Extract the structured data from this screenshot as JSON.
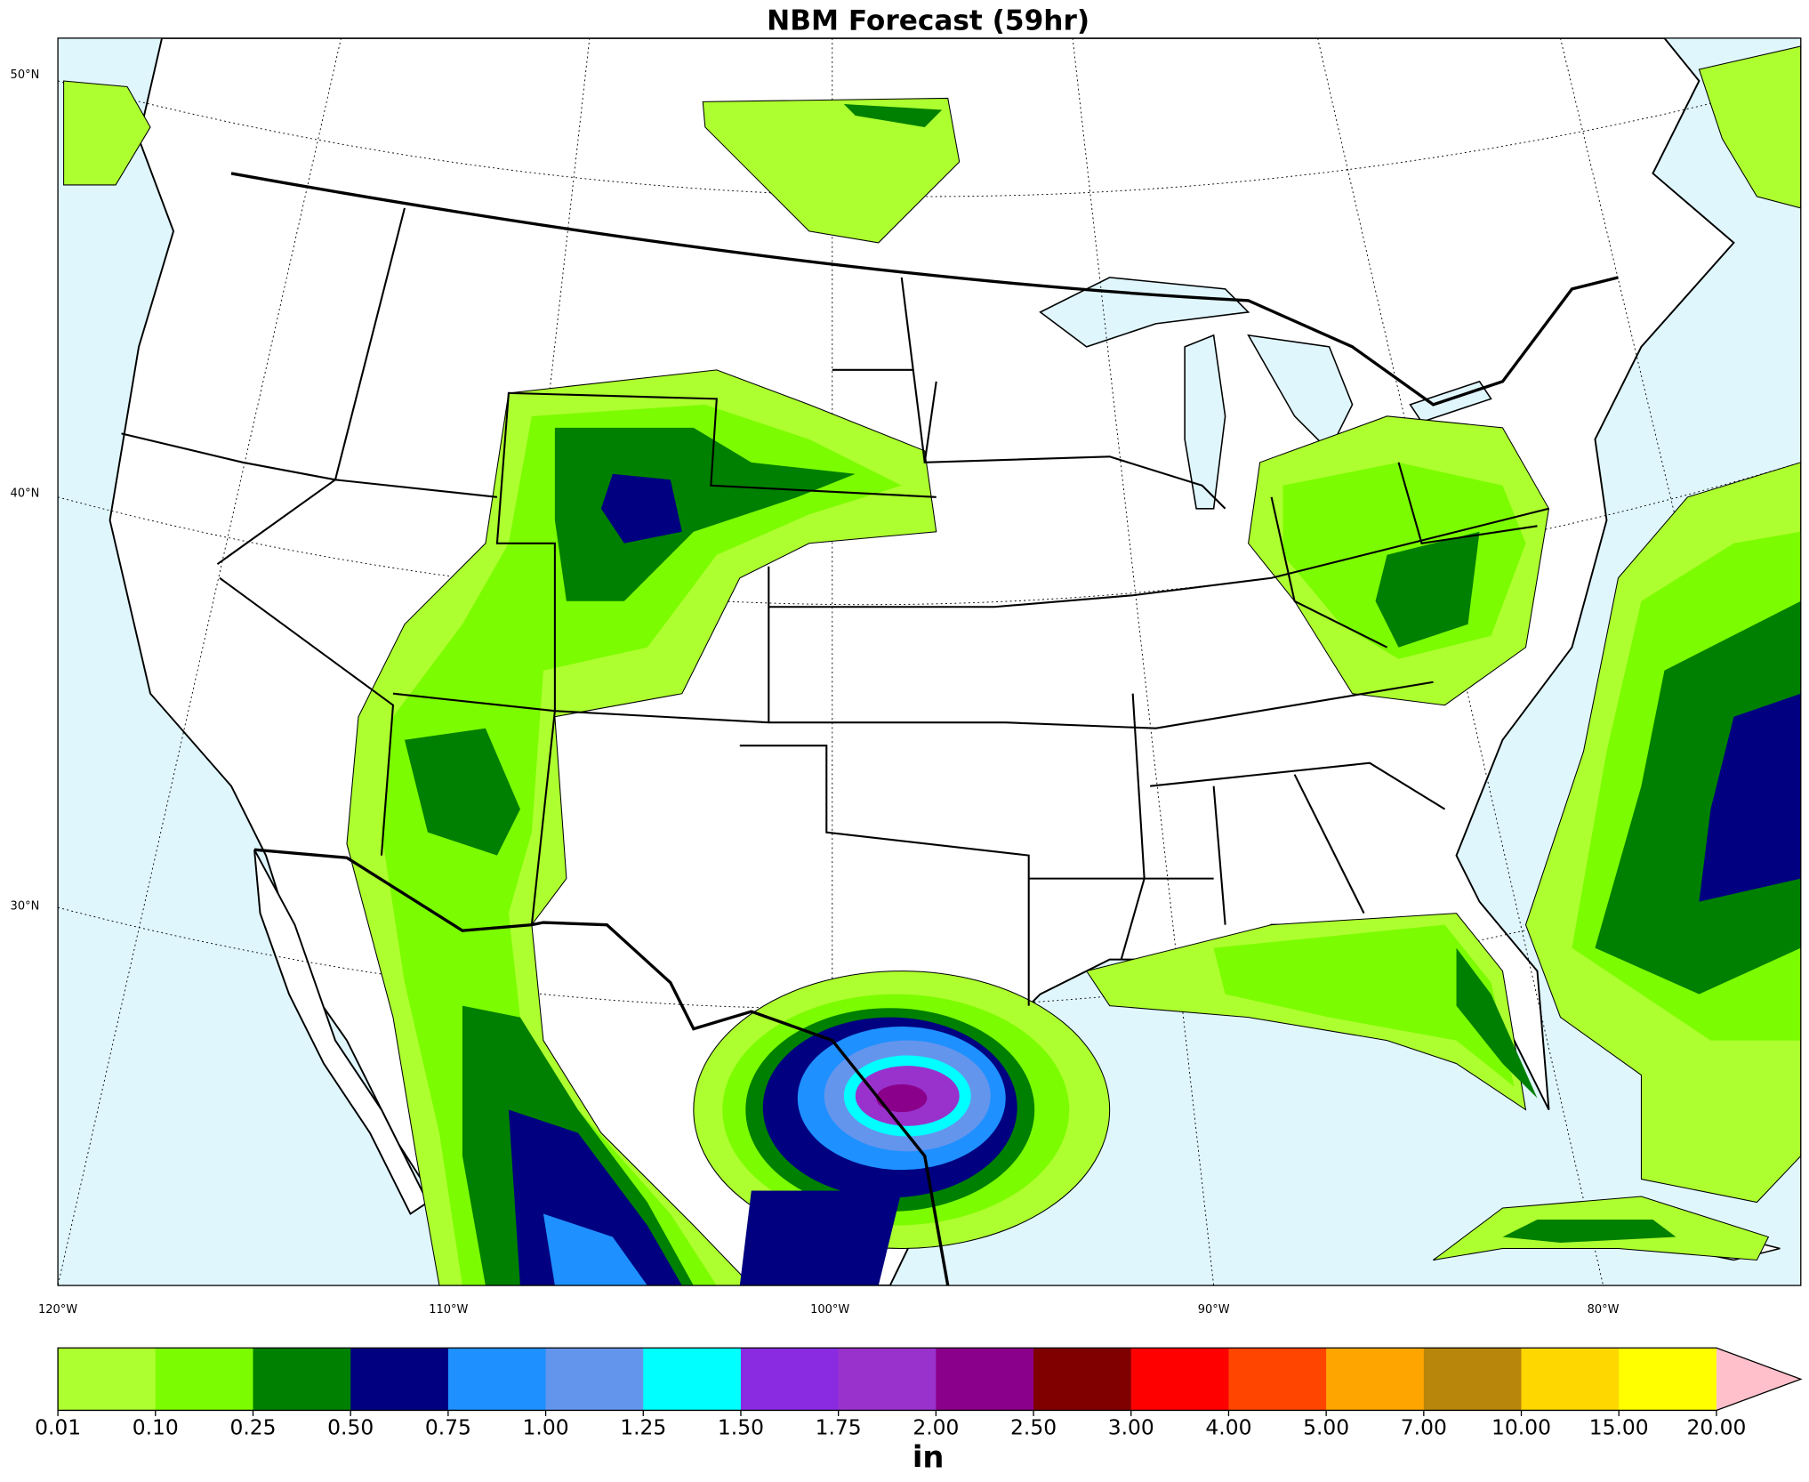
{
  "title": "NBM Forecast (59hr)",
  "map": {
    "lat_labels": [
      "50°N",
      "40°N",
      "30°N"
    ],
    "lon_labels": [
      "120°W",
      "110°W",
      "100°W",
      "90°W",
      "80°W"
    ]
  },
  "colorbar": {
    "label": "in",
    "ticks": [
      0.01,
      {
        "value": 0.1,
        "label": "0.10"
      },
      0.25,
      {
        "value": 0.5,
        "label": "0.50"
      },
      0.75,
      {
        "value": 1,
        "label": "1.00"
      },
      1.25,
      {
        "value": 1.5,
        "label": "1.50"
      },
      1.75,
      {
        "value": 2,
        "label": "2.00"
      },
      {
        "value": 2.5,
        "label": "2.50"
      },
      {
        "value": 3,
        "label": "3.00"
      },
      {
        "value": 4,
        "label": "4.00"
      },
      {
        "value": 5,
        "label": "5.00"
      },
      {
        "value": 7,
        "label": "7.00"
      },
      {
        "value": 10,
        "label": "10.00"
      },
      {
        "value": 15,
        "label": "15.00"
      },
      {
        "value": 20,
        "label": "20.00"
      }
    ],
    "colors": [
      "#adff2f",
      "#7cfc00",
      "#008000",
      "#000080",
      "#1e90ff",
      "#6495ed",
      "#00ffff",
      "#8a2be2",
      "#9932cc",
      "#8b008b",
      "#800000",
      "#ff0000",
      "#ff4500",
      "#ffa500",
      "#b8860b",
      "#ffd700",
      "#ffff00"
    ],
    "extend_color": "#ffc0cb"
  }
}
